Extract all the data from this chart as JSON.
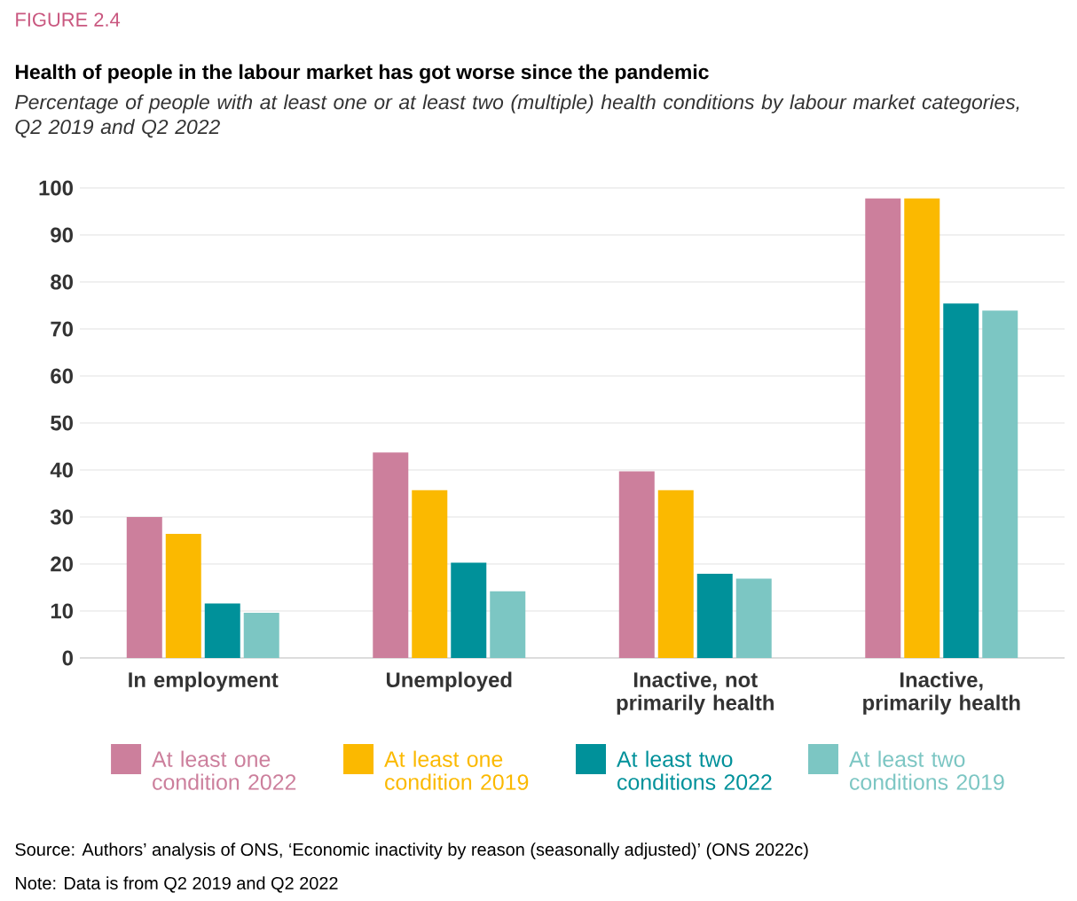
{
  "chart_data": {
    "type": "bar",
    "title": "Health of people in the labour market has got worse since the pandemic",
    "subtitle": "Percentage of people with at least one or at least two (multiple) health conditions by labour market categories, Q2 2019 and Q2 2022",
    "categories": [
      "In employment",
      "Unemployed",
      "Inactive, not primarily health",
      "Inactive, primarily health"
    ],
    "series": [
      {
        "name": "At least one condition 2022",
        "color": "#cc7f9c",
        "values": [
          30,
          43.7,
          39.7,
          97.8
        ]
      },
      {
        "name": "At least one condition 2019",
        "color": "#fbb900",
        "values": [
          26.4,
          35.7,
          35.7,
          97.8
        ]
      },
      {
        "name": "At least two conditions 2022",
        "color": "#00919a",
        "values": [
          11.6,
          20.3,
          17.9,
          75.4
        ]
      },
      {
        "name": "At least two conditions 2019",
        "color": "#7cc6c3",
        "values": [
          9.6,
          14.2,
          16.9,
          73.9
        ]
      }
    ],
    "ylim": [
      0,
      100
    ],
    "yticks": [
      0,
      10,
      20,
      30,
      40,
      50,
      60,
      70,
      80,
      90,
      100
    ],
    "grid": "y",
    "legend": "bottom",
    "annotations": [
      "FIGURE 2.4",
      "Source: Authors’ analysis of ONS, ‘Economic inactivity by reason (seasonally adjusted)’ (ONS 2022c)",
      "Note: Data is from Q2 2019 and Q2 2022"
    ]
  }
}
